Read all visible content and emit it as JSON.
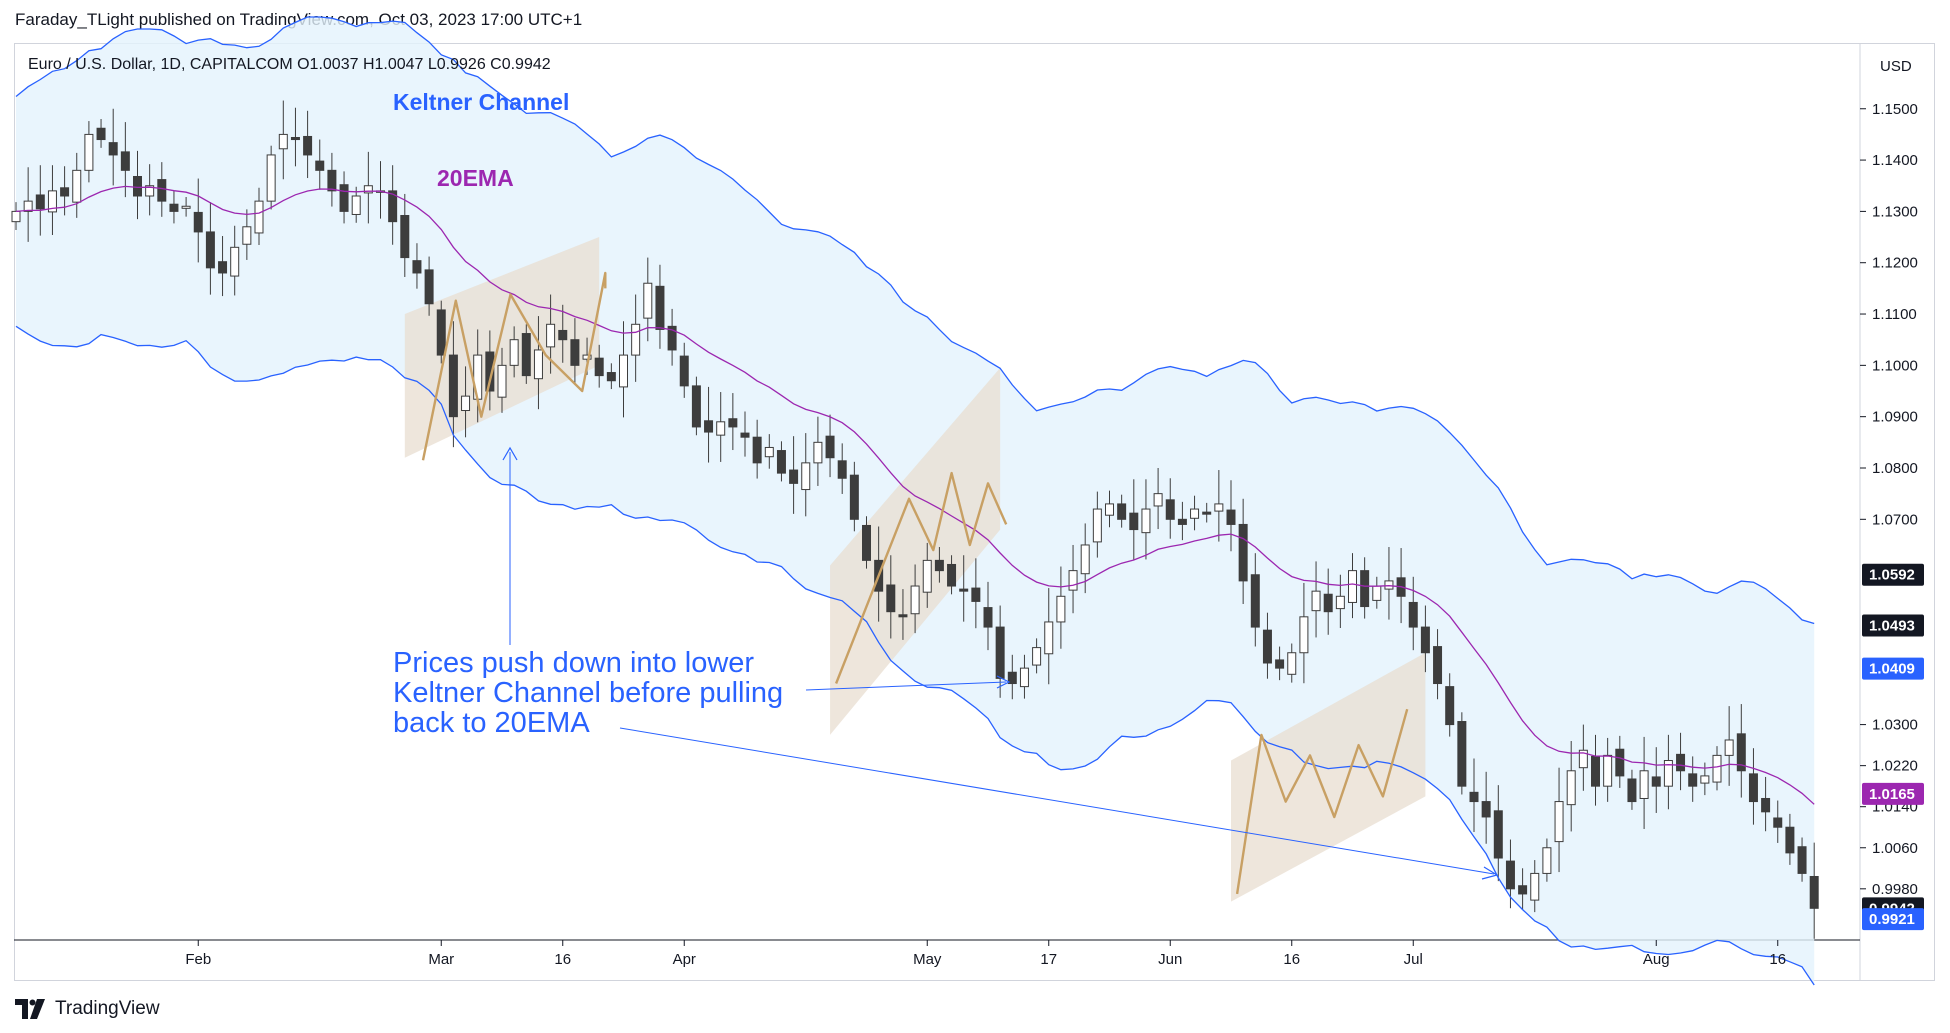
{
  "header": {
    "published": "Faraday_TLight published on TradingView.com, Oct 03, 2023 17:00 UTC+1"
  },
  "footer": {
    "brand": "TradingView"
  },
  "colors": {
    "keltner": "#2962ff",
    "ema": "#9c27b0",
    "channel_fill": "#e3f2fd",
    "zigzag": "#c8a064",
    "box": "#e8ddd0",
    "candle_up": "#ffffff",
    "candle_down": "#3d3d3d",
    "wick": "#3d3d3d"
  },
  "chart_data": {
    "type": "candlestick",
    "symbol_line": "Euro / U.S. Dollar, 1D, CAPITALCOM  O1.0037  H1.0047  L0.9926  C0.9942",
    "currency": "USD",
    "ylim": [
      0.989,
      1.1595
    ],
    "y_ticks": [
      "1.1500",
      "1.1400",
      "1.1300",
      "1.1200",
      "1.1100",
      "1.1000",
      "1.0900",
      "1.0800",
      "1.0700",
      "1.0300",
      "1.0220",
      "1.0140",
      "1.0060",
      "0.9980"
    ],
    "x_labels": [
      {
        "label": "Feb",
        "bar": 15
      },
      {
        "label": "Mar",
        "bar": 35
      },
      {
        "label": "16",
        "bar": 45
      },
      {
        "label": "Apr",
        "bar": 55
      },
      {
        "label": "May",
        "bar": 75
      },
      {
        "label": "17",
        "bar": 85
      },
      {
        "label": "Jun",
        "bar": 95
      },
      {
        "label": "16",
        "bar": 105
      },
      {
        "label": "Jul",
        "bar": 115
      },
      {
        "label": "Aug",
        "bar": 135
      },
      {
        "label": "16",
        "bar": 145
      }
    ],
    "price_badges": [
      {
        "value": "1.0592",
        "color": "#131722"
      },
      {
        "value": "1.0493",
        "color": "#131722"
      },
      {
        "value": "1.0409",
        "color": "#2962ff"
      },
      {
        "value": "1.0165",
        "color": "#9c27b0"
      },
      {
        "value": "0.9942",
        "color": "#131722"
      },
      {
        "value": "0.9921",
        "color": "#2962ff"
      }
    ],
    "closes": [
      1.13,
      1.132,
      1.1305,
      1.134,
      1.133,
      1.138,
      1.145,
      1.144,
      1.141,
      1.138,
      1.133,
      1.135,
      1.132,
      1.13,
      1.131,
      1.126,
      1.119,
      1.118,
      1.123,
      1.127,
      1.132,
      1.141,
      1.145,
      1.144,
      1.141,
      1.138,
      1.134,
      1.13,
      1.133,
      1.135,
      1.134,
      1.128,
      1.121,
      1.118,
      1.112,
      1.102,
      1.09,
      1.094,
      1.102,
      1.095,
      1.1,
      1.105,
      1.098,
      1.103,
      1.108,
      1.105,
      1.1,
      1.102,
      1.098,
      1.097,
      1.102,
      1.108,
      1.116,
      1.107,
      1.103,
      1.096,
      1.088,
      1.087,
      1.089,
      1.088,
      1.086,
      1.081,
      1.084,
      1.079,
      1.077,
      1.081,
      1.085,
      1.082,
      1.078,
      1.07,
      1.062,
      1.056,
      1.052,
      1.051,
      1.057,
      1.062,
      1.06,
      1.057,
      1.056,
      1.054,
      1.049,
      1.039,
      1.038,
      1.041,
      1.045,
      1.05,
      1.055,
      1.06,
      1.065,
      1.072,
      1.073,
      1.07,
      1.068,
      1.072,
      1.075,
      1.07,
      1.069,
      1.072,
      1.071,
      1.073,
      1.069,
      1.058,
      1.049,
      1.042,
      1.041,
      1.044,
      1.051,
      1.056,
      1.052,
      1.055,
      1.06,
      1.053,
      1.057,
      1.058,
      1.055,
      1.049,
      1.044,
      1.038,
      1.03,
      1.018,
      1.015,
      1.012,
      1.004,
      0.998,
      0.997,
      1.001,
      1.006,
      1.015,
      1.021,
      1.025,
      1.018,
      1.024,
      1.02,
      1.015,
      1.021,
      1.018,
      1.023,
      1.021,
      1.018,
      1.02,
      1.024,
      1.027,
      1.021,
      1.015,
      1.013,
      1.01,
      1.005,
      1.001,
      0.9942
    ],
    "zigzag_bars": [
      [
        33.5,
        1.0815
      ],
      [
        36.2,
        1.1126
      ],
      [
        38.3,
        1.09
      ],
      [
        40.7,
        1.1138
      ],
      [
        43.6,
        1.102
      ],
      [
        46.6,
        1.095
      ],
      [
        48.5,
        1.118
      ],
      [
        48.5,
        1.115
      ]
    ],
    "series_names": [
      "Keltner upper",
      "20EMA",
      "Keltner lower",
      "Price"
    ]
  },
  "annotations": {
    "keltner_label": "Keltner Channel",
    "ema_label": "20EMA",
    "note_line1": "Prices push down into lower",
    "note_line2": "Keltner Channel before pulling",
    "note_line3": "back to 20EMA"
  }
}
